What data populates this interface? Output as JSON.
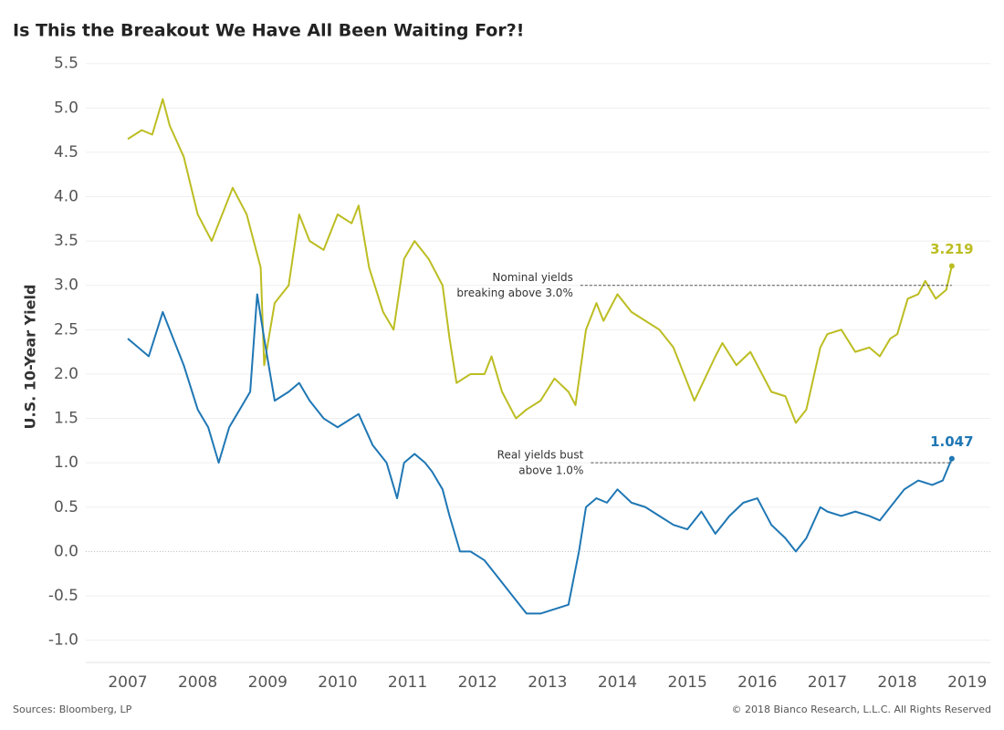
{
  "chart_data": {
    "type": "line",
    "title": "Is This the Breakout We Have All Been Waiting For?!",
    "y_label": "U.S. 10-Year Yield",
    "source": "Sources: Bloomberg, LP",
    "copyright": "© 2018 Bianco Research, L.L.C. All Rights Reserved",
    "xlim": [
      2006.4,
      2019.33
    ],
    "xticks": [
      2007,
      2008,
      2009,
      2010,
      2011,
      2012,
      2013,
      2014,
      2015,
      2016,
      2017,
      2018,
      2019
    ],
    "ylim": [
      -1.2,
      5.6
    ],
    "yticks": [
      {
        "value": -1,
        "label": "-1.0"
      },
      -0.5,
      {
        "value": 0,
        "label": "0.0"
      },
      0.5,
      {
        "value": 1,
        "label": "1.0"
      },
      1.5,
      {
        "value": 2,
        "label": "2.0"
      },
      2.5,
      {
        "value": 3,
        "label": "3.0"
      },
      3.5,
      {
        "value": 4,
        "label": "4.0"
      },
      4.5,
      {
        "value": 5,
        "label": "5.0"
      },
      5.5
    ],
    "grid": true,
    "series": [
      {
        "color": "#bcbd22",
        "x": [
          2007.0,
          2007.2,
          2007.35,
          2007.5,
          2007.6,
          2007.8,
          2008.0,
          2008.2,
          2008.4,
          2008.5,
          2008.7,
          2008.9,
          2008.95,
          2009.1,
          2009.3,
          2009.45,
          2009.6,
          2009.8,
          2010.0,
          2010.2,
          2010.3,
          2010.45,
          2010.65,
          2010.8,
          2010.95,
          2011.1,
          2011.3,
          2011.5,
          2011.6,
          2011.7,
          2011.9,
          2012.1,
          2012.2,
          2012.35,
          2012.55,
          2012.7,
          2012.9,
          2013.1,
          2013.3,
          2013.4,
          2013.55,
          2013.7,
          2013.8,
          2014.0,
          2014.2,
          2014.4,
          2014.6,
          2014.8,
          2015.0,
          2015.1,
          2015.4,
          2015.5,
          2015.7,
          2015.9,
          2016.0,
          2016.2,
          2016.4,
          2016.55,
          2016.7,
          2016.9,
          2017.0,
          2017.2,
          2017.4,
          2017.6,
          2017.75,
          2017.9,
          2018.0,
          2018.15,
          2018.3,
          2018.4,
          2018.55,
          2018.7,
          2018.78
        ],
        "values": [
          4.65,
          4.75,
          4.7,
          5.1,
          4.8,
          4.45,
          3.8,
          3.5,
          3.9,
          4.1,
          3.8,
          3.2,
          2.1,
          2.8,
          3.0,
          3.8,
          3.5,
          3.4,
          3.8,
          3.7,
          3.9,
          3.2,
          2.7,
          2.5,
          3.3,
          3.5,
          3.3,
          3.0,
          2.4,
          1.9,
          2.0,
          2.0,
          2.2,
          1.8,
          1.5,
          1.6,
          1.7,
          1.95,
          1.8,
          1.65,
          2.5,
          2.8,
          2.6,
          2.9,
          2.7,
          2.6,
          2.5,
          2.3,
          1.9,
          1.7,
          2.2,
          2.35,
          2.1,
          2.25,
          2.1,
          1.8,
          1.75,
          1.45,
          1.6,
          2.3,
          2.45,
          2.5,
          2.25,
          2.3,
          2.2,
          2.4,
          2.45,
          2.85,
          2.9,
          3.05,
          2.85,
          2.95,
          3.219
        ]
      },
      {
        "color": "#1f77b4",
        "x": [
          2007.0,
          2007.15,
          2007.3,
          2007.5,
          2007.6,
          2007.8,
          2008.0,
          2008.15,
          2008.3,
          2008.45,
          2008.6,
          2008.75,
          2008.85,
          2008.95,
          2009.1,
          2009.3,
          2009.45,
          2009.6,
          2009.8,
          2010.0,
          2010.2,
          2010.3,
          2010.5,
          2010.7,
          2010.85,
          2010.95,
          2011.1,
          2011.25,
          2011.35,
          2011.5,
          2011.6,
          2011.75,
          2011.9,
          2012.1,
          2012.3,
          2012.5,
          2012.7,
          2012.9,
          2013.1,
          2013.3,
          2013.45,
          2013.55,
          2013.7,
          2013.85,
          2014.0,
          2014.2,
          2014.4,
          2014.6,
          2014.8,
          2015.0,
          2015.2,
          2015.4,
          2015.6,
          2015.8,
          2016.0,
          2016.2,
          2016.4,
          2016.55,
          2016.7,
          2016.9,
          2017.0,
          2017.2,
          2017.4,
          2017.6,
          2017.75,
          2017.9,
          2018.1,
          2018.3,
          2018.5,
          2018.65,
          2018.78
        ],
        "values": [
          2.4,
          2.3,
          2.2,
          2.7,
          2.5,
          2.1,
          1.6,
          1.4,
          1.0,
          1.4,
          1.6,
          1.8,
          2.9,
          2.4,
          1.7,
          1.8,
          1.9,
          1.7,
          1.5,
          1.4,
          1.5,
          1.55,
          1.2,
          1.0,
          0.6,
          1.0,
          1.1,
          1.0,
          0.9,
          0.7,
          0.4,
          0.0,
          0.0,
          -0.1,
          -0.3,
          -0.5,
          -0.7,
          -0.7,
          -0.65,
          -0.6,
          0.0,
          0.5,
          0.6,
          0.55,
          0.7,
          0.55,
          0.5,
          0.4,
          0.3,
          0.25,
          0.45,
          0.2,
          0.4,
          0.55,
          0.6,
          0.3,
          0.15,
          0.0,
          0.15,
          0.5,
          0.45,
          0.4,
          0.45,
          0.4,
          0.35,
          0.5,
          0.7,
          0.8,
          0.75,
          0.8,
          1.047
        ]
      }
    ],
    "annotations": [
      {
        "text": [
          "Nominal yields",
          "breaking above 3.0%"
        ],
        "x": 2013.47,
        "y": 3.0
      },
      {
        "text": [
          "Real yields bust",
          "above 1.0%"
        ],
        "x": 2013.62,
        "y": 1.0
      }
    ]
  }
}
